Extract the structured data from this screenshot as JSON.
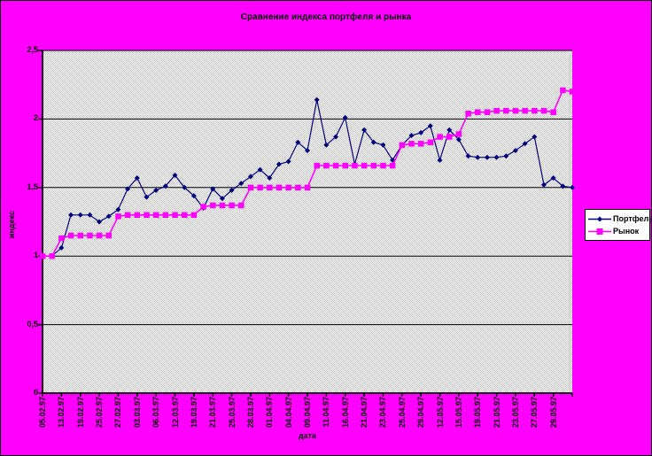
{
  "window": {
    "background_color": "#FF00FF",
    "border_color": "#000000"
  },
  "chart_data": {
    "type": "line",
    "title": "Сравнение индекса портфеля и рынка",
    "xlabel": "дата",
    "ylabel": "индекс",
    "ylim": [
      0,
      2.5
    ],
    "y_tick_labels": [
      "0",
      "0,5",
      "1",
      "1,5",
      "2",
      "2,5"
    ],
    "y_tick_values": [
      0,
      0.5,
      1,
      1.5,
      2,
      2.5
    ],
    "grid": true,
    "legend_position": "right",
    "plot_pattern_colors": [
      "#C4C4C4",
      "#FFFFFF"
    ],
    "categories": [
      "05.02.97",
      "",
      "13.02.97",
      "",
      "19.02.97",
      "",
      "25.02.97",
      "",
      "27.02.97",
      "",
      "03.03.97",
      "",
      "06.03.97",
      "",
      "12.03.97",
      "",
      "19.03.97",
      "",
      "21.03.97",
      "",
      "25.03.97",
      "",
      "28.03.97",
      "",
      "01.04.97",
      "",
      "04.04.97",
      "",
      "09.04.97",
      "",
      "11.04.97",
      "",
      "16.04.97",
      "",
      "21.04.97",
      "",
      "23.04.97",
      "",
      "25.04.97",
      "",
      "29.04.97",
      "",
      "12.05.97",
      "",
      "15.05.97",
      "",
      "19.05.97",
      "",
      "21.05.97",
      "",
      "23.05.97",
      "",
      "27.05.97",
      "",
      "29.05.97",
      "",
      ""
    ],
    "series": [
      {
        "name": "Портфель",
        "color": "#000080",
        "marker": "diamond",
        "values": [
          1.0,
          1.0,
          1.06,
          1.3,
          1.3,
          1.3,
          1.25,
          1.29,
          1.34,
          1.49,
          1.57,
          1.43,
          1.48,
          1.51,
          1.59,
          1.5,
          1.44,
          1.35,
          1.49,
          1.42,
          1.48,
          1.53,
          1.58,
          1.63,
          1.57,
          1.67,
          1.69,
          1.83,
          1.77,
          2.14,
          1.81,
          1.87,
          2.01,
          1.67,
          1.92,
          1.83,
          1.81,
          1.7,
          1.81,
          1.88,
          1.9,
          1.95,
          1.7,
          1.92,
          1.85,
          1.73,
          1.72,
          1.72,
          1.72,
          1.73,
          1.77,
          1.82,
          1.87,
          1.52,
          1.57,
          1.51,
          1.5
        ]
      },
      {
        "name": "Рынок",
        "color": "#FF00FF",
        "marker": "square",
        "values": [
          1.0,
          1.0,
          1.13,
          1.15,
          1.15,
          1.15,
          1.15,
          1.15,
          1.29,
          1.3,
          1.3,
          1.3,
          1.3,
          1.3,
          1.3,
          1.3,
          1.3,
          1.36,
          1.37,
          1.37,
          1.37,
          1.37,
          1.5,
          1.5,
          1.5,
          1.5,
          1.5,
          1.5,
          1.5,
          1.66,
          1.66,
          1.66,
          1.66,
          1.66,
          1.66,
          1.66,
          1.66,
          1.66,
          1.81,
          1.82,
          1.82,
          1.83,
          1.87,
          1.87,
          1.89,
          2.04,
          2.05,
          2.05,
          2.06,
          2.06,
          2.06,
          2.06,
          2.06,
          2.06,
          2.05,
          2.21,
          2.2
        ]
      }
    ]
  }
}
